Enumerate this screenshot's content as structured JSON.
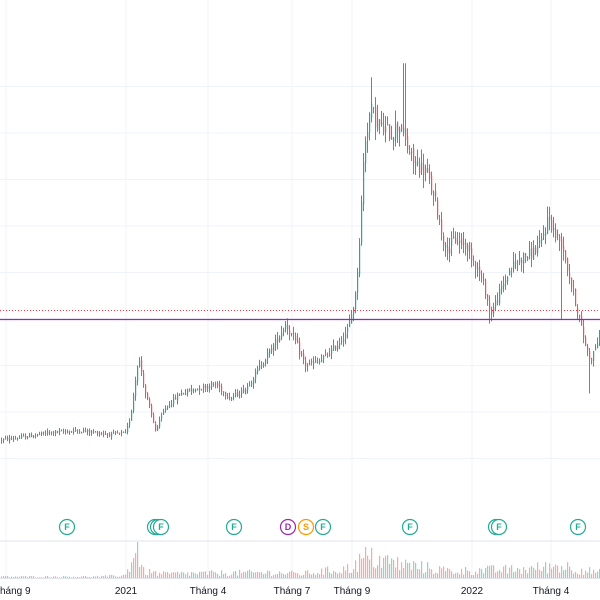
{
  "chart_data": {
    "type": "candlestick",
    "title": "",
    "xlabel": "",
    "ylabel": "",
    "ylim": [
      0,
      100
    ],
    "x_tick_labels": [
      "háng 9",
      "2021",
      "Tháng 4",
      "Tháng 7",
      "Tháng 9",
      "2022",
      "Tháng 4"
    ],
    "x_tick_values": [
      6,
      126,
      208,
      292,
      352,
      472,
      551
    ],
    "horizontal_lines": [
      {
        "name": "support-level",
        "value": 40.1,
        "color": "#9c27b0",
        "style": "solid"
      },
      {
        "name": "last-price-level",
        "value": 41.9,
        "color": "#f23645",
        "style": "dotted"
      }
    ],
    "event_markers": [
      {
        "label": "F",
        "x": 67,
        "color": "#22ab94"
      },
      {
        "label": "F",
        "x": 155,
        "color": "#22ab94"
      },
      {
        "label": "F",
        "x": 158,
        "color": "#22ab94"
      },
      {
        "label": "F",
        "x": 161,
        "color": "#22ab94"
      },
      {
        "label": "F",
        "x": 234,
        "color": "#22ab94"
      },
      {
        "label": "D",
        "x": 288,
        "color": "#9c27b0"
      },
      {
        "label": "S",
        "x": 306,
        "color": "#ff9800"
      },
      {
        "label": "F",
        "x": 323,
        "color": "#22ab94"
      },
      {
        "label": "F",
        "x": 410,
        "color": "#22ab94"
      },
      {
        "label": "F",
        "x": 496,
        "color": "#22ab94"
      },
      {
        "label": "F",
        "x": 499,
        "color": "#22ab94"
      },
      {
        "label": "F",
        "x": 578,
        "color": "#22ab94"
      }
    ],
    "price_keypoints": [
      [
        0,
        14.0
      ],
      [
        20,
        14.5
      ],
      [
        50,
        15.6
      ],
      [
        80,
        16.0
      ],
      [
        110,
        15.2
      ],
      [
        125,
        15.4
      ],
      [
        130,
        19.0
      ],
      [
        138,
        32.0
      ],
      [
        145,
        24.0
      ],
      [
        155,
        16.0
      ],
      [
        165,
        21.0
      ],
      [
        180,
        24.0
      ],
      [
        195,
        25.0
      ],
      [
        215,
        26.0
      ],
      [
        230,
        23.0
      ],
      [
        245,
        25.0
      ],
      [
        260,
        30.0
      ],
      [
        275,
        35.0
      ],
      [
        285,
        39.0
      ],
      [
        295,
        35.0
      ],
      [
        305,
        30.0
      ],
      [
        320,
        31.0
      ],
      [
        335,
        34.0
      ],
      [
        348,
        38.0
      ],
      [
        355,
        45.0
      ],
      [
        360,
        60.0
      ],
      [
        364,
        78.0
      ],
      [
        370,
        85.0
      ],
      [
        380,
        81.0
      ],
      [
        390,
        80.0
      ],
      [
        400,
        82.0
      ],
      [
        405,
        78.0
      ],
      [
        412,
        74.0
      ],
      [
        425,
        72.0
      ],
      [
        435,
        65.0
      ],
      [
        445,
        55.0
      ],
      [
        455,
        57.0
      ],
      [
        465,
        56.0
      ],
      [
        475,
        52.0
      ],
      [
        485,
        46.0
      ],
      [
        490,
        41.0
      ],
      [
        500,
        46.0
      ],
      [
        510,
        51.0
      ],
      [
        520,
        53.0
      ],
      [
        530,
        54.0
      ],
      [
        540,
        56.0
      ],
      [
        548,
        62.0
      ],
      [
        555,
        58.0
      ],
      [
        562,
        56.0
      ],
      [
        570,
        48.0
      ],
      [
        577,
        42.0
      ],
      [
        583,
        36.0
      ],
      [
        590,
        31.0
      ],
      [
        600,
        37.0
      ]
    ],
    "spikes": [
      {
        "x": 404,
        "high": 95.0
      },
      {
        "x": 371,
        "high": 92.0
      },
      {
        "x": 561,
        "low": 40.0
      },
      {
        "x": 589,
        "low": 24.0
      },
      {
        "x": 489,
        "low": 39.0
      },
      {
        "x": 154,
        "low": 18.0
      }
    ],
    "volume_keypoints": [
      [
        0,
        2
      ],
      [
        100,
        2
      ],
      [
        125,
        4
      ],
      [
        136,
        45
      ],
      [
        142,
        10
      ],
      [
        160,
        6
      ],
      [
        270,
        8
      ],
      [
        300,
        6
      ],
      [
        350,
        14
      ],
      [
        365,
        30
      ],
      [
        400,
        20
      ],
      [
        410,
        18
      ],
      [
        450,
        10
      ],
      [
        500,
        12
      ],
      [
        520,
        12
      ],
      [
        560,
        18
      ],
      [
        590,
        10
      ],
      [
        600,
        8
      ]
    ],
    "series_colors": {
      "up": "#26a69a",
      "down": "#ef5350"
    }
  }
}
